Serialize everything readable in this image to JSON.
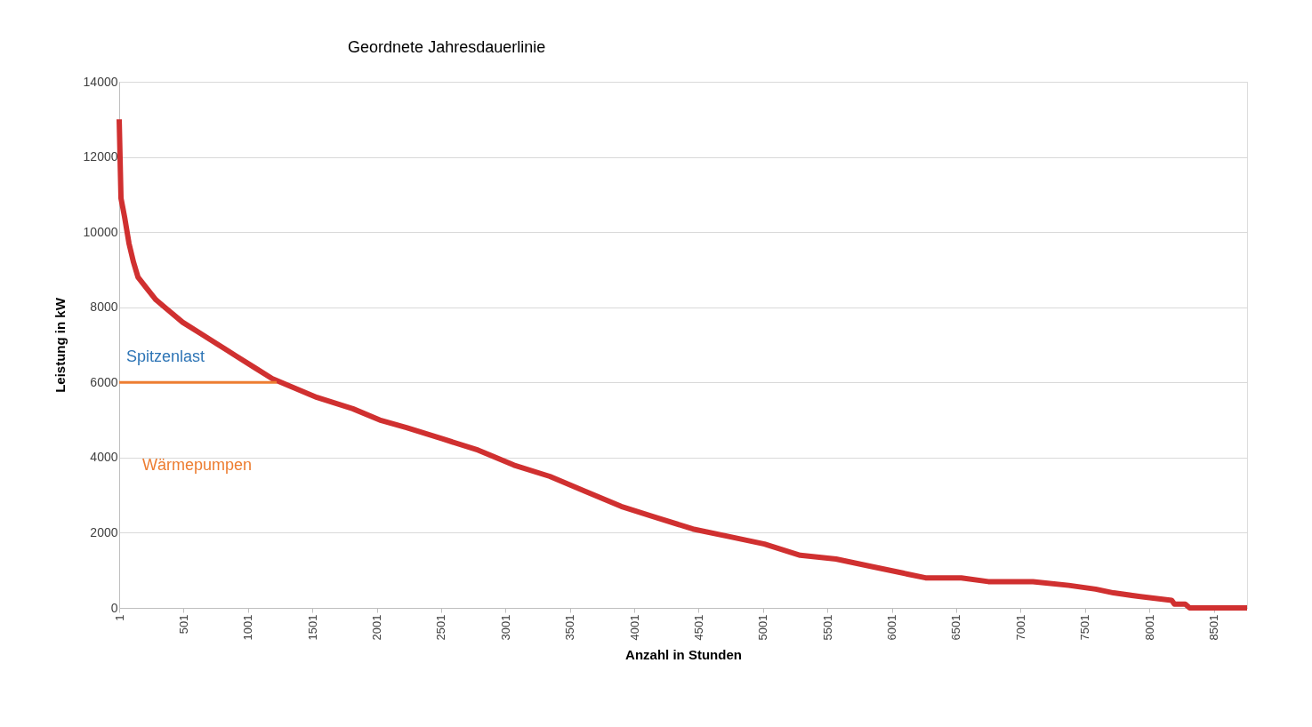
{
  "chart_data": {
    "type": "line",
    "title": "Geordnete Jahresdauerlinie",
    "xlabel": "Anzahl in Stunden",
    "ylabel": "Leistung in kW",
    "xlim": [
      1,
      8760
    ],
    "xticks": [
      1,
      501,
      1001,
      1501,
      2001,
      2501,
      3001,
      3501,
      4001,
      4501,
      5001,
      5501,
      6001,
      6501,
      7001,
      7501,
      8001,
      8501
    ],
    "ylim": [
      0,
      14000
    ],
    "yticks": [
      0,
      2000,
      4000,
      6000,
      8000,
      10000,
      12000,
      14000
    ],
    "grid": "y",
    "legend": false,
    "marker": "none",
    "line_style": "solid",
    "series": [
      {
        "color": "#d03030",
        "x": [
          1,
          15,
          43,
          77,
          112,
          147,
          216,
          286,
          355,
          494,
          633,
          772,
          911,
          1050,
          1189,
          1328,
          1537,
          1815,
          2024,
          2232,
          2510,
          2788,
          3066,
          3345,
          3623,
          3900,
          4178,
          4456,
          4734,
          5012,
          5290,
          5568,
          5707,
          5846,
          6124,
          6263,
          6541,
          6750,
          7097,
          7375,
          7584,
          7723,
          7932,
          8175,
          8196,
          8280,
          8314,
          8760
        ],
        "values": [
          13000,
          10900,
          10400,
          9700,
          9200,
          8800,
          8500,
          8200,
          8000,
          7600,
          7300,
          7000,
          6700,
          6400,
          6100,
          5900,
          5600,
          5300,
          5000,
          4800,
          4500,
          4200,
          3800,
          3500,
          3100,
          2700,
          2400,
          2100,
          1900,
          1700,
          1400,
          1300,
          1200,
          1100,
          900,
          800,
          800,
          700,
          700,
          600,
          500,
          400,
          300,
          200,
          100,
          100,
          0,
          0
        ]
      },
      {
        "color": "#ed7d31",
        "x": [
          1,
          1224
        ],
        "values": [
          6000,
          6000
        ]
      }
    ],
    "annotations": [
      "Spitzenlast",
      "Wärmepumpen"
    ]
  }
}
